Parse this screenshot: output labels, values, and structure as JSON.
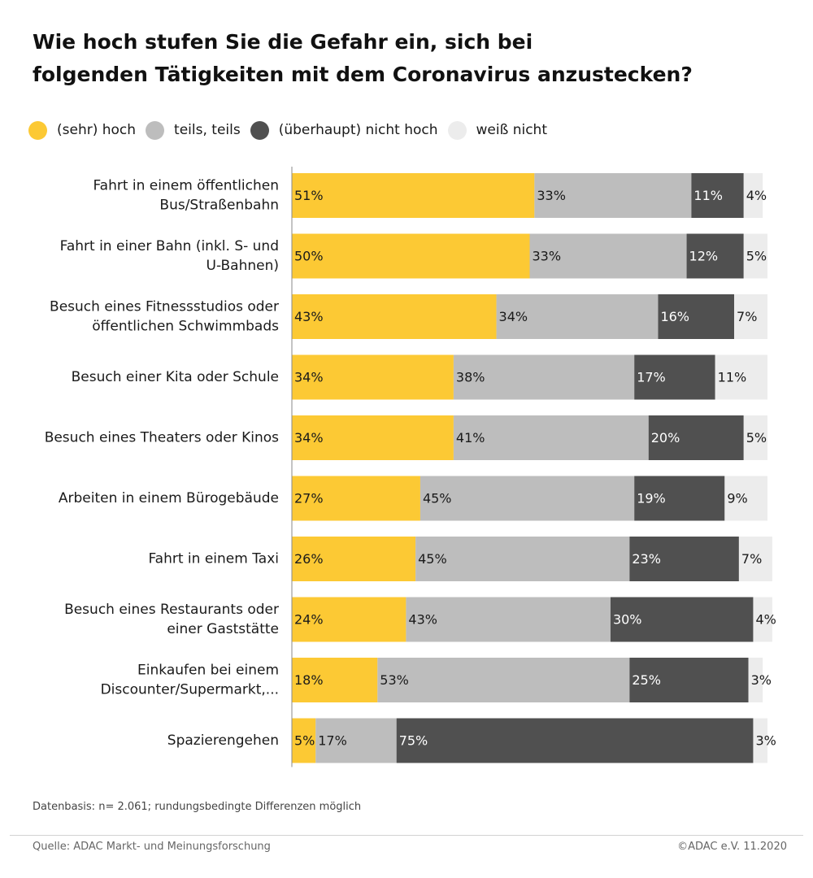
{
  "title_lines": [
    "Wie hoch stufen Sie die Gefahr ein, sich bei",
    "folgenden Tätigkeiten mit dem Coronavirus anzustecken?"
  ],
  "legend": [
    {
      "label": "(sehr) hoch",
      "color": "#fcc934"
    },
    {
      "label": "teils, teils",
      "color": "#bdbdbd"
    },
    {
      "label": "(überhaupt) nicht hoch",
      "color": "#505050"
    },
    {
      "label": "weiß nicht",
      "color": "#ececec"
    }
  ],
  "chart_data": {
    "type": "bar",
    "stacked": true,
    "orientation": "horizontal",
    "unit": "%",
    "categories": [
      [
        "Fahrt in einem öffentlichen",
        "Bus/Straßenbahn"
      ],
      [
        "Fahrt in einer Bahn (inkl. S- und",
        "U-Bahnen)"
      ],
      [
        "Besuch eines Fitnessstudios oder",
        "öffentlichen Schwimmbads"
      ],
      [
        "Besuch einer Kita oder Schule"
      ],
      [
        "Besuch eines Theaters oder Kinos"
      ],
      [
        "Arbeiten in einem Bürogebäude"
      ],
      [
        "Fahrt in einem Taxi"
      ],
      [
        "Besuch eines Restaurants oder",
        "einer Gaststätte"
      ],
      [
        "Einkaufen bei einem",
        "Discounter/Supermarkt,..."
      ],
      [
        "Spazierengehen"
      ]
    ],
    "series": [
      {
        "name": "(sehr) hoch",
        "color": "#fcc934",
        "values": [
          51,
          50,
          43,
          34,
          34,
          27,
          26,
          24,
          18,
          5
        ]
      },
      {
        "name": "teils, teils",
        "color": "#bdbdbd",
        "values": [
          33,
          33,
          34,
          38,
          41,
          45,
          45,
          43,
          53,
          17
        ]
      },
      {
        "name": "(überhaupt) nicht hoch",
        "color": "#505050",
        "values": [
          11,
          12,
          16,
          17,
          20,
          19,
          23,
          30,
          25,
          75
        ]
      },
      {
        "name": "weiß nicht",
        "color": "#ececec",
        "values": [
          4,
          5,
          7,
          11,
          5,
          9,
          7,
          4,
          3,
          3
        ]
      }
    ],
    "xlim": [
      0,
      100
    ],
    "legend_position": "top-left",
    "grid": false
  },
  "footnote": "Datenbasis: n= 2.061; rundungsbedingte Differenzen möglich",
  "source": "Quelle: ADAC Markt- und Meinungsforschung",
  "copyright": "©ADAC e.V.  11.2020"
}
